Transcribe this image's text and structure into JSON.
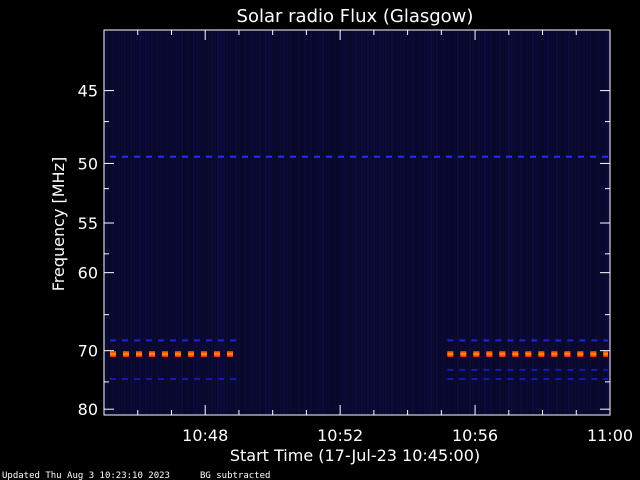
{
  "chart_data": {
    "type": "heatmap",
    "title": "Solar radio Flux (Glasgow)",
    "ylabel": "Frequency [MHz]",
    "xlabel": "Start Time (17-Jul-23 10:45:00)",
    "xlim": [
      "10:45",
      "11:00"
    ],
    "y_ticks": [
      {
        "value": 45,
        "label": "45"
      },
      {
        "value": 50,
        "label": "50"
      },
      {
        "value": 55,
        "label": "55"
      },
      {
        "value": 60,
        "label": "60"
      },
      {
        "value": 70,
        "label": "70"
      },
      {
        "value": 80,
        "label": "80"
      }
    ],
    "x_ticks": [
      {
        "value": "10:48",
        "label": "10:48"
      },
      {
        "value": "10:52",
        "label": "10:52"
      },
      {
        "value": "10:56",
        "label": "10:56"
      },
      {
        "value": "11:00",
        "label": "11:00"
      }
    ],
    "features": [
      {
        "kind": "band",
        "freq": 49.5,
        "start": "10:45",
        "end": "11:00",
        "color": "#2a2aff"
      },
      {
        "kind": "band",
        "freq": 68.5,
        "start": "10:45",
        "end": "10:49",
        "color": "#2020e0"
      },
      {
        "kind": "band",
        "freq": 70.5,
        "start": "10:45",
        "end": "10:49",
        "color": "#ff8800"
      },
      {
        "kind": "band",
        "freq": 74.5,
        "start": "10:45",
        "end": "10:49",
        "color": "#1818b0"
      },
      {
        "kind": "band",
        "freq": 68.5,
        "start": "10:55",
        "end": "11:00",
        "color": "#2020e0"
      },
      {
        "kind": "band",
        "freq": 70.5,
        "start": "10:55",
        "end": "11:00",
        "color": "#ff8800"
      },
      {
        "kind": "band",
        "freq": 73.0,
        "start": "10:55",
        "end": "11:00",
        "color": "#1818b0"
      },
      {
        "kind": "band",
        "freq": 74.5,
        "start": "10:55",
        "end": "11:00",
        "color": "#1818b0"
      }
    ],
    "background_color": "#08082a",
    "colors": {
      "axis": "#ffffff",
      "background": "#000000"
    }
  },
  "footer": {
    "updated": "Updated Thu Aug  3 10:23:10 2023",
    "note": "BG subtracted"
  }
}
